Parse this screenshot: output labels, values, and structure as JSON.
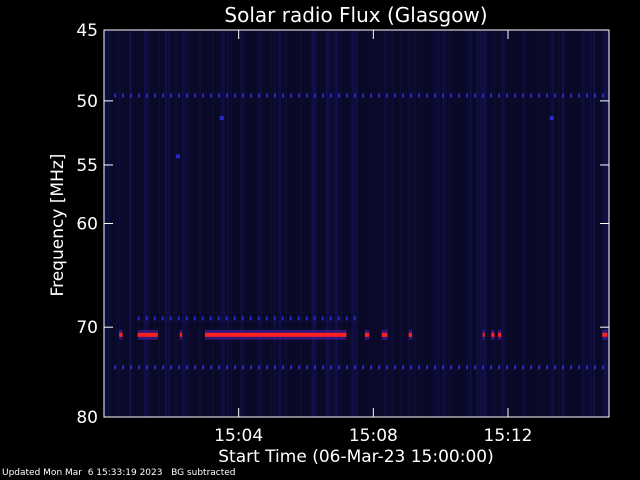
{
  "chart_data": {
    "type": "heatmap",
    "title": "Solar radio Flux (Glasgow)",
    "xlabel": "Start Time (06-Mar-23 15:00:00)",
    "ylabel": "Frequency [MHz]",
    "x_ticks": [
      "15:04",
      "15:08",
      "15:12"
    ],
    "x_tick_minutes": [
      4,
      8,
      12
    ],
    "x_range_minutes": [
      0.0,
      15.0
    ],
    "y_ticks": [
      45,
      50,
      55,
      60,
      70,
      80
    ],
    "y_range": [
      45,
      80
    ],
    "y_scale": "log",
    "background_color": "#000000",
    "plot_background_color": "#0a0a28",
    "colors": {
      "emission_core": "#ff2020",
      "emission_edge": "#3a1a8a",
      "interference": "#2a2ac8",
      "noise": "#14145a"
    },
    "emission_bands": [
      {
        "freq_mhz": 70.8,
        "segments_min": [
          [
            0.45,
            0.55
          ],
          [
            1.0,
            1.6
          ],
          [
            2.25,
            2.32
          ],
          [
            3.0,
            7.2
          ],
          [
            7.75,
            7.88
          ],
          [
            8.25,
            8.42
          ],
          [
            9.05,
            9.15
          ],
          [
            11.25,
            11.3
          ],
          [
            11.5,
            11.6
          ],
          [
            11.7,
            11.8
          ],
          [
            14.8,
            14.95
          ]
        ]
      }
    ],
    "interference_lines": [
      {
        "freq_mhz": 49.6,
        "range_min": [
          0.3,
          14.9
        ]
      },
      {
        "freq_mhz": 69.1,
        "range_min": [
          1.0,
          7.5
        ]
      },
      {
        "freq_mhz": 74.3,
        "range_min": [
          0.3,
          14.9
        ]
      }
    ],
    "spots": [
      {
        "time_min": 2.2,
        "freq_mhz": 54.3
      },
      {
        "time_min": 3.5,
        "freq_mhz": 51.3
      },
      {
        "time_min": 13.3,
        "freq_mhz": 51.3
      }
    ]
  },
  "footer": {
    "updated": "Updated Mon Mar  6 15:33:19 2023",
    "note": "BG subtracted"
  }
}
